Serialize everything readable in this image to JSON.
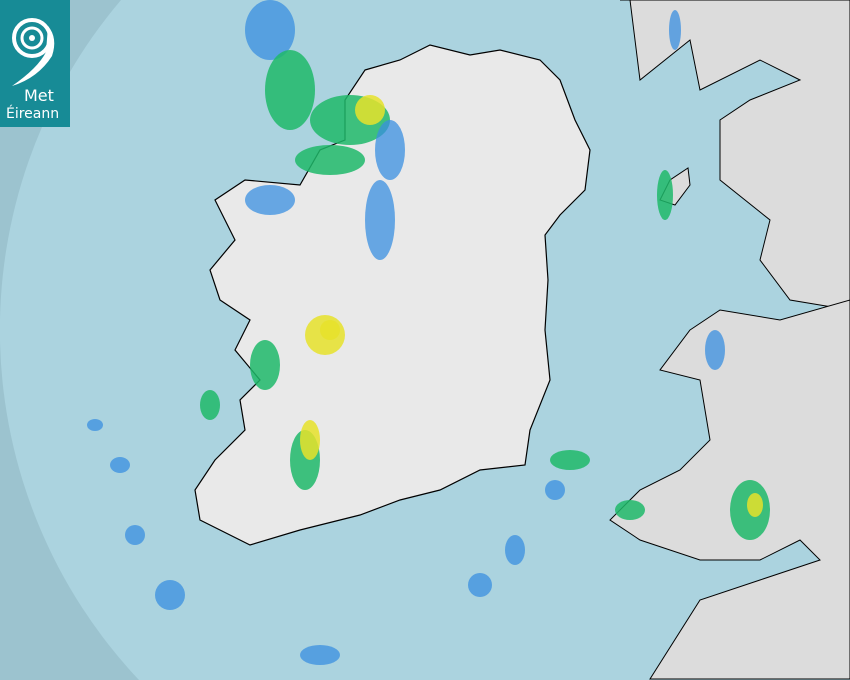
{
  "logo": {
    "line1": "Met",
    "line2": "Éireann",
    "color": "#178b96"
  },
  "colors": {
    "sea_outside_range": "#9cc3cf",
    "sea_radar_range": "#abd3df",
    "land": "#e9e9e9",
    "border": "#000000",
    "rain_light": "#3a8fe0",
    "rain_moderate": "#1fb86a",
    "rain_heavy": "#e6e22a"
  }
}
